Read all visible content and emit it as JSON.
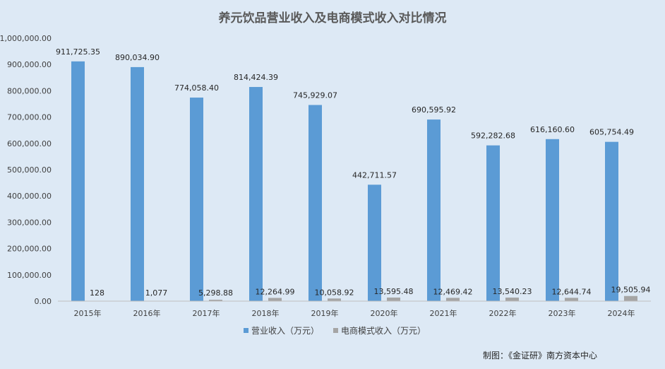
{
  "chart_data": {
    "type": "bar",
    "title": "养元饮品营业收入及电商模式收入对比情况",
    "categories": [
      "2015年",
      "2016年",
      "2017年",
      "2018年",
      "2019年",
      "2020年",
      "2021年",
      "2022年",
      "2023年",
      "2024年"
    ],
    "series": [
      {
        "name": "营业收入（万元）",
        "color": "#5b9bd5",
        "values": [
          911725.35,
          890034.9,
          774058.4,
          814424.39,
          745929.07,
          442711.57,
          690595.92,
          592282.68,
          616160.6,
          605754.49
        ],
        "labels": [
          "911,725.35",
          "890,034.90",
          "774,058.40",
          "814,424.39",
          "745,929.07",
          "442,711.57",
          "690,595.92",
          "592,282.68",
          "616,160.60",
          "605,754.49"
        ]
      },
      {
        "name": "电商模式收入（万元）",
        "color": "#a5a5a5",
        "values": [
          128,
          1077,
          5298.88,
          12264.99,
          10058.92,
          13595.48,
          12469.42,
          13540.23,
          12644.74,
          19505.94
        ],
        "labels": [
          "128",
          "1,077",
          "5,298.88",
          "12,264.99",
          "10,058.92",
          "13,595.48",
          "12,469.42",
          "13,540.23",
          "12,644.74",
          "19,505.94"
        ]
      }
    ],
    "ylim": [
      0,
      1000000
    ],
    "yticks": [
      "0.00",
      "100,000.00",
      "200,000.00",
      "300,000.00",
      "400,000.00",
      "500,000.00",
      "600,000.00",
      "700,000.00",
      "800,000.00",
      "900,000.00",
      "1,000,000.00"
    ],
    "grid": false,
    "legend_position": "bottom"
  },
  "credit": "制图：《金证研》南方资本中心"
}
